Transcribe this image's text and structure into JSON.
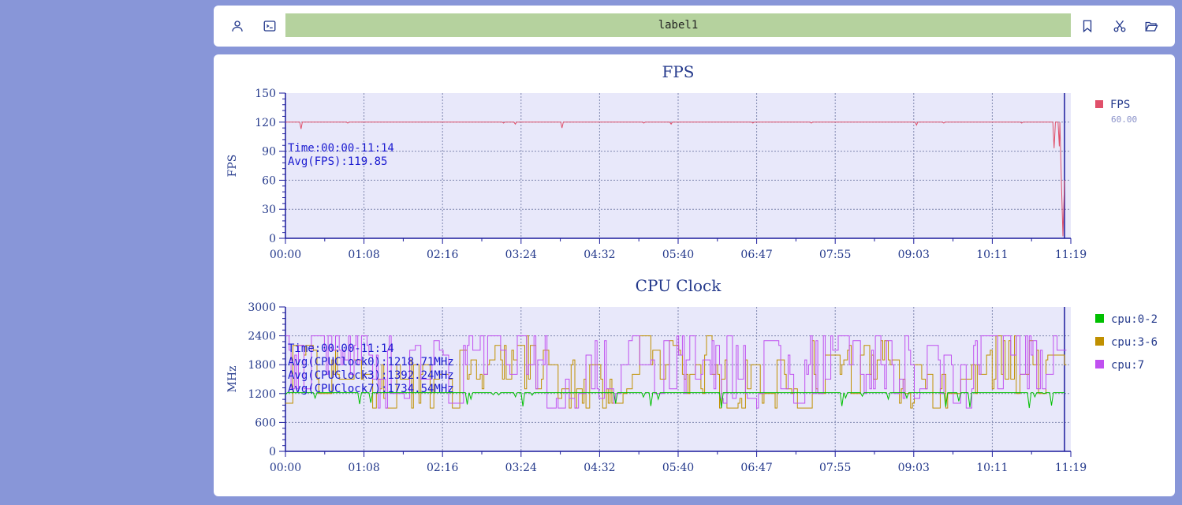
{
  "toolbar": {
    "label": "label1",
    "icons": [
      "user-icon",
      "terminal-icon",
      "bookmark-icon",
      "scissors-icon",
      "folder-open-icon"
    ]
  },
  "colors": {
    "background": "#8896d8",
    "plot_bg": "#e8e8fa",
    "axis": "#1a1a9c",
    "fps": "#e0506a",
    "cpu0": "#00c000",
    "cpu3": "#c09000",
    "cpu7": "#c050f0"
  },
  "chart_data": [
    {
      "type": "line",
      "title": "FPS",
      "ylabel": "FPS",
      "ylim": [
        0,
        150
      ],
      "yticks": [
        "0",
        "30",
        "60",
        "90",
        "120",
        "150"
      ],
      "xticks": [
        "00:00",
        "01:08",
        "02:16",
        "03:24",
        "04:32",
        "05:40",
        "06:47",
        "07:55",
        "09:03",
        "10:11",
        "11:19"
      ],
      "notes": [
        "Time:00:00-11:14",
        "Avg(FPS):119.85"
      ],
      "legend": [
        {
          "name": "FPS",
          "sub": "60.00"
        }
      ],
      "series": [
        {
          "name": "FPS",
          "base": 120,
          "dips": [
            [
              0.02,
              113
            ],
            [
              0.08,
              119
            ],
            [
              0.28,
              119
            ],
            [
              0.295,
              118
            ],
            [
              0.355,
              114
            ],
            [
              0.46,
              119
            ],
            [
              0.495,
              118
            ],
            [
              0.6,
              119
            ],
            [
              0.675,
              119
            ],
            [
              0.81,
              117
            ],
            [
              0.845,
              119
            ],
            [
              0.945,
              119
            ],
            [
              0.987,
              93
            ],
            [
              0.99,
              120
            ],
            [
              0.993,
              95
            ]
          ],
          "tail": [
            [
              0.994,
              120
            ],
            [
              0.996,
              60
            ],
            [
              0.998,
              2
            ],
            [
              1.0,
              60
            ]
          ]
        }
      ]
    },
    {
      "type": "line",
      "title": "CPU Clock",
      "ylabel": "MHz",
      "ylim": [
        0,
        3000
      ],
      "yticks": [
        "0",
        "600",
        "1200",
        "1800",
        "2400",
        "3000"
      ],
      "xticks": [
        "00:00",
        "01:08",
        "02:16",
        "03:24",
        "04:32",
        "05:40",
        "06:47",
        "07:55",
        "09:03",
        "10:11",
        "11:19"
      ],
      "notes": [
        "Time:00:00-11:14",
        "Avg(CPUClock0):1218.71MHz",
        "Avg(CPUClock3):1392.24MHz",
        "Avg(CPUClock7):1734.54MHz"
      ],
      "legend": [
        {
          "name": "cpu:0-2"
        },
        {
          "name": "cpu:3-6"
        },
        {
          "name": "cpu:7"
        }
      ],
      "series": [
        {
          "name": "cpu:0-2",
          "avg": 1218.71,
          "min": 900,
          "max": 1220
        },
        {
          "name": "cpu:3-6",
          "avg": 1392.24,
          "min": 850,
          "max": 2400
        },
        {
          "name": "cpu:7",
          "avg": 1734.54,
          "min": 900,
          "max": 2400
        }
      ]
    }
  ]
}
